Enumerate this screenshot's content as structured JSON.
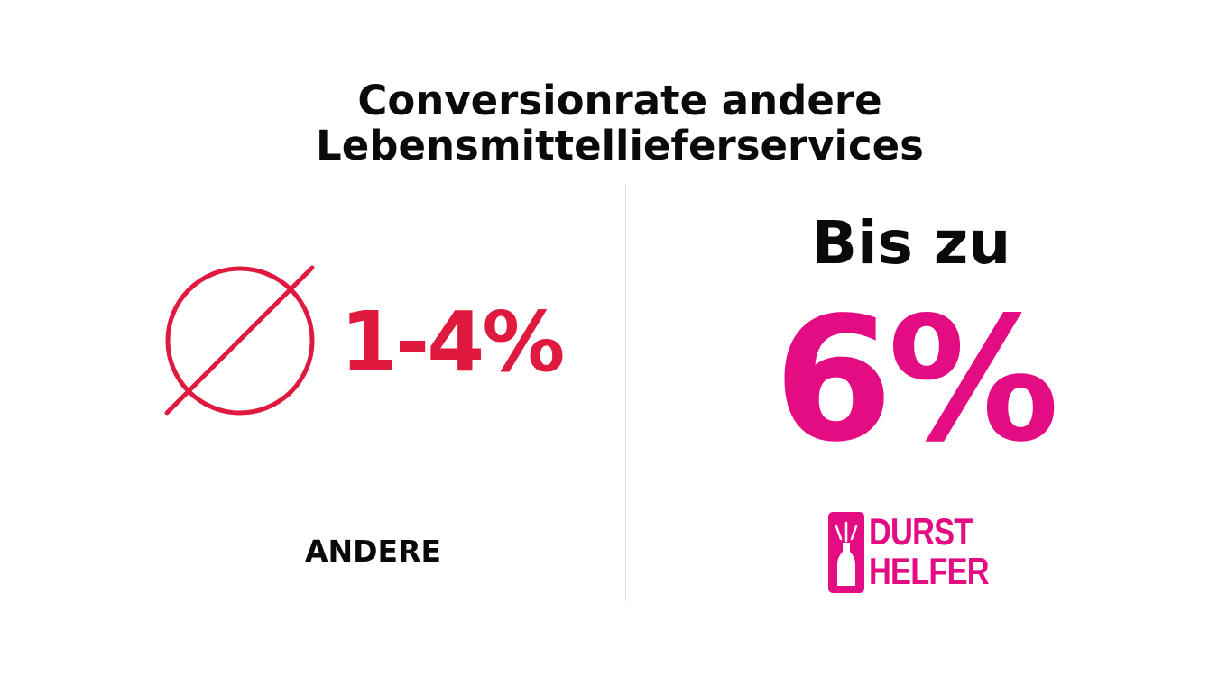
{
  "title": {
    "line1": "Conversionrate andere",
    "line2": "Lebensmittellieferservices"
  },
  "left": {
    "icon": "average-diameter-icon",
    "value": "1-4%",
    "label": "ANDERE",
    "color": "#e0193f"
  },
  "right": {
    "prefix": "Bis zu",
    "value": "6%",
    "color": "#e30c83",
    "logo": {
      "icon": "bottle-icon",
      "line1": "DURST",
      "line2": "HELFER"
    }
  }
}
